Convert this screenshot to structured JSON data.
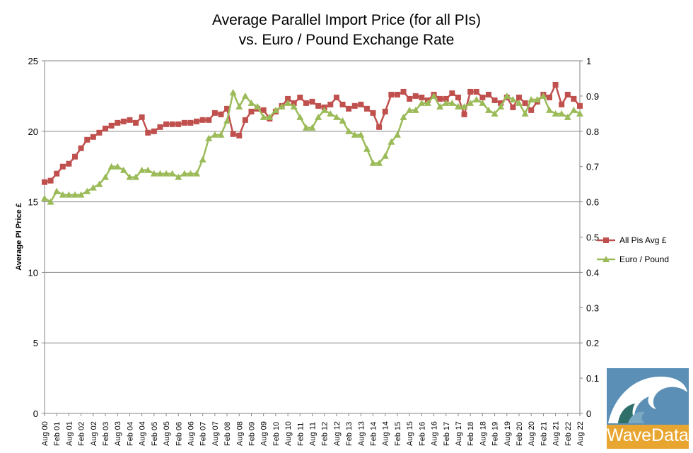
{
  "chart_data": {
    "type": "line",
    "title": [
      "Average Parallel Import Price (for all PIs)",
      "vs. Euro / Pound Exchange Rate"
    ],
    "ylabel": "Average PI Price £",
    "y_range": [
      0,
      25
    ],
    "y_ticks": [
      0,
      5,
      10,
      15,
      20,
      25
    ],
    "y2_range": [
      0,
      1
    ],
    "y2_ticks": [
      0,
      0.1,
      0.2,
      0.3,
      0.4,
      0.5,
      0.6,
      0.7,
      0.8,
      0.9,
      1
    ],
    "x_range": [
      0,
      44
    ],
    "x_tick_labels": [
      "Aug 00",
      "Feb 01",
      "Aug 01",
      "Feb 02",
      "Aug 02",
      "Feb 03",
      "Aug 03",
      "Feb 04",
      "Aug 04",
      "Feb 05",
      "Aug 05",
      "Feb 06",
      "Aug 06",
      "Feb 07",
      "Aug 07",
      "Feb 08",
      "Aug 08",
      "Feb 09",
      "Aug 09",
      "Feb 10",
      "Aug 10",
      "Feb 11",
      "Aug 11",
      "Feb 12",
      "Aug 12",
      "Feb 13",
      "Aug 13",
      "Feb 14",
      "Aug 14",
      "Feb 15",
      "Aug 15",
      "Feb 16",
      "Aug 16",
      "Feb 17",
      "Aug 17",
      "Feb 18",
      "Aug 18",
      "Feb 19",
      "Aug 19",
      "Feb 20",
      "Aug 20",
      "Feb 21",
      "Aug 21",
      "Feb 22",
      "Aug 22"
    ],
    "grid": "horizontal",
    "legend_position": "right",
    "series": [
      {
        "name": "All Pis Avg £",
        "axis": "left",
        "color": "#c0504d",
        "marker": "square",
        "x": [
          0,
          0.5,
          1,
          1.5,
          2,
          2.5,
          3,
          3.5,
          4,
          4.5,
          5,
          5.5,
          6,
          6.5,
          7,
          7.5,
          8,
          8.5,
          9,
          9.5,
          10,
          10.5,
          11,
          11.5,
          12,
          12.5,
          13,
          13.5,
          14,
          14.5,
          15,
          15.5,
          16,
          16.5,
          17,
          17.5,
          18,
          18.5,
          19,
          19.5,
          20,
          20.5,
          21,
          21.5,
          22,
          22.5,
          23,
          23.5,
          24,
          24.5,
          25,
          25.5,
          26,
          26.5,
          27,
          27.5,
          28,
          28.5,
          29,
          29.5,
          30,
          30.5,
          31,
          31.5,
          32,
          32.5,
          33,
          33.5,
          34,
          34.5,
          35,
          35.5,
          36,
          36.5,
          37,
          37.5,
          38,
          38.5,
          39,
          39.5,
          40,
          40.5,
          41,
          41.5,
          42,
          42.5,
          43,
          43.5,
          44
        ],
        "values": [
          16.4,
          16.5,
          17.0,
          17.5,
          17.7,
          18.2,
          18.8,
          19.4,
          19.6,
          19.9,
          20.2,
          20.4,
          20.6,
          20.7,
          20.8,
          20.6,
          21.0,
          19.9,
          20.0,
          20.3,
          20.5,
          20.5,
          20.5,
          20.6,
          20.6,
          20.7,
          20.8,
          20.8,
          21.3,
          21.2,
          21.6,
          19.8,
          19.7,
          20.8,
          21.4,
          21.6,
          21.5,
          20.9,
          21.4,
          21.8,
          22.3,
          22.0,
          22.4,
          22.0,
          22.1,
          21.8,
          21.7,
          21.9,
          22.4,
          21.9,
          21.6,
          21.8,
          21.9,
          21.6,
          21.3,
          20.3,
          21.4,
          22.6,
          22.6,
          22.8,
          22.3,
          22.5,
          22.4,
          22.2,
          22.6,
          22.3,
          22.3,
          22.7,
          22.4,
          21.2,
          22.8,
          22.8,
          22.4,
          22.6,
          22.2,
          22.0,
          22.4,
          21.7,
          22.4,
          22.0,
          21.5,
          22.1,
          22.6,
          22.4,
          23.3,
          21.9,
          22.6,
          22.3,
          21.8
        ]
      },
      {
        "name": "Euro /  Pound",
        "axis": "right",
        "color": "#9bbb59",
        "marker": "triangle",
        "x": [
          0,
          0.5,
          1,
          1.5,
          2,
          2.5,
          3,
          3.5,
          4,
          4.5,
          5,
          5.5,
          6,
          6.5,
          7,
          7.5,
          8,
          8.5,
          9,
          9.5,
          10,
          10.5,
          11,
          11.5,
          12,
          12.5,
          13,
          13.5,
          14,
          14.5,
          15,
          15.5,
          16,
          16.5,
          17,
          17.5,
          18,
          18.5,
          19,
          19.5,
          20,
          20.5,
          21,
          21.5,
          22,
          22.5,
          23,
          23.5,
          24,
          24.5,
          25,
          25.5,
          26,
          26.5,
          27,
          27.5,
          28,
          28.5,
          29,
          29.5,
          30,
          30.5,
          31,
          31.5,
          32,
          32.5,
          33,
          33.5,
          34,
          34.5,
          35,
          35.5,
          36,
          36.5,
          37,
          37.5,
          38,
          38.5,
          39,
          39.5,
          40,
          40.5,
          41,
          41.5,
          42,
          42.5,
          43,
          43.5,
          44
        ],
        "values": [
          0.61,
          0.6,
          0.63,
          0.62,
          0.62,
          0.62,
          0.62,
          0.63,
          0.64,
          0.65,
          0.67,
          0.7,
          0.7,
          0.69,
          0.67,
          0.67,
          0.69,
          0.69,
          0.68,
          0.68,
          0.68,
          0.68,
          0.67,
          0.68,
          0.68,
          0.68,
          0.72,
          0.78,
          0.79,
          0.79,
          0.83,
          0.91,
          0.87,
          0.9,
          0.88,
          0.87,
          0.84,
          0.84,
          0.86,
          0.87,
          0.88,
          0.87,
          0.84,
          0.81,
          0.81,
          0.84,
          0.86,
          0.85,
          0.84,
          0.83,
          0.8,
          0.79,
          0.79,
          0.75,
          0.71,
          0.71,
          0.73,
          0.77,
          0.79,
          0.84,
          0.86,
          0.86,
          0.88,
          0.88,
          0.9,
          0.87,
          0.88,
          0.88,
          0.87,
          0.87,
          0.88,
          0.89,
          0.88,
          0.86,
          0.85,
          0.87,
          0.9,
          0.89,
          0.88,
          0.85,
          0.89,
          0.89,
          0.9,
          0.86,
          0.85,
          0.85,
          0.84,
          0.86,
          0.85
        ]
      }
    ]
  },
  "logo": {
    "text": "WaveData",
    "bg": "#e8a530",
    "panel": "#5b8fb5"
  }
}
